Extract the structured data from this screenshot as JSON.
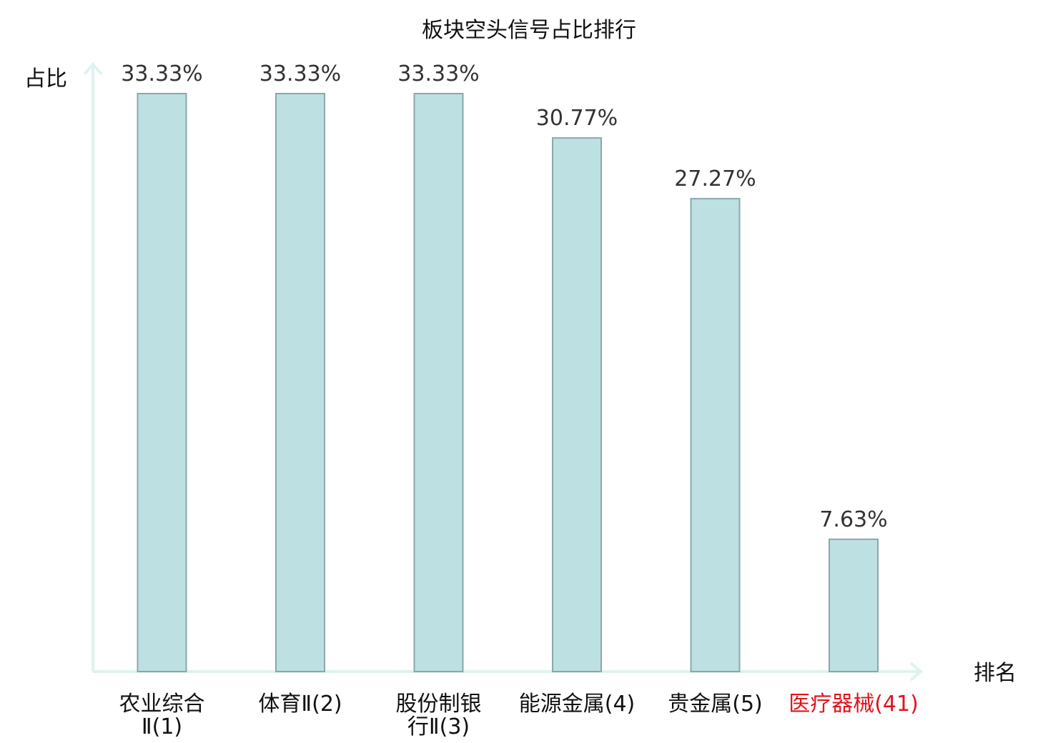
{
  "chart_data": {
    "type": "bar",
    "title": "板块空头信号占比排行",
    "ylabel": "占比",
    "xlabel": "排名",
    "categories": [
      [
        "农业综合",
        "Ⅱ(1)"
      ],
      [
        "体育Ⅱ(2)"
      ],
      [
        "股份制银",
        "行Ⅱ(3)"
      ],
      [
        "能源金属(4)"
      ],
      [
        "贵金属(5)"
      ],
      [
        "医疗器械(41)"
      ]
    ],
    "values": [
      33.33,
      33.33,
      33.33,
      30.77,
      27.27,
      7.63
    ],
    "value_labels": [
      "33.33%",
      "33.33%",
      "33.33%",
      "30.77%",
      "27.27%",
      "7.63%"
    ],
    "highlight_index": 5,
    "ylim": [
      0,
      33.33
    ],
    "grid": false,
    "colors": {
      "bar_fill": "#bde0e3",
      "bar_stroke": "#8aa8aa",
      "axis": "#e0f2ef",
      "tick_text": "#111111",
      "highlight_text": "#e0141e"
    }
  }
}
